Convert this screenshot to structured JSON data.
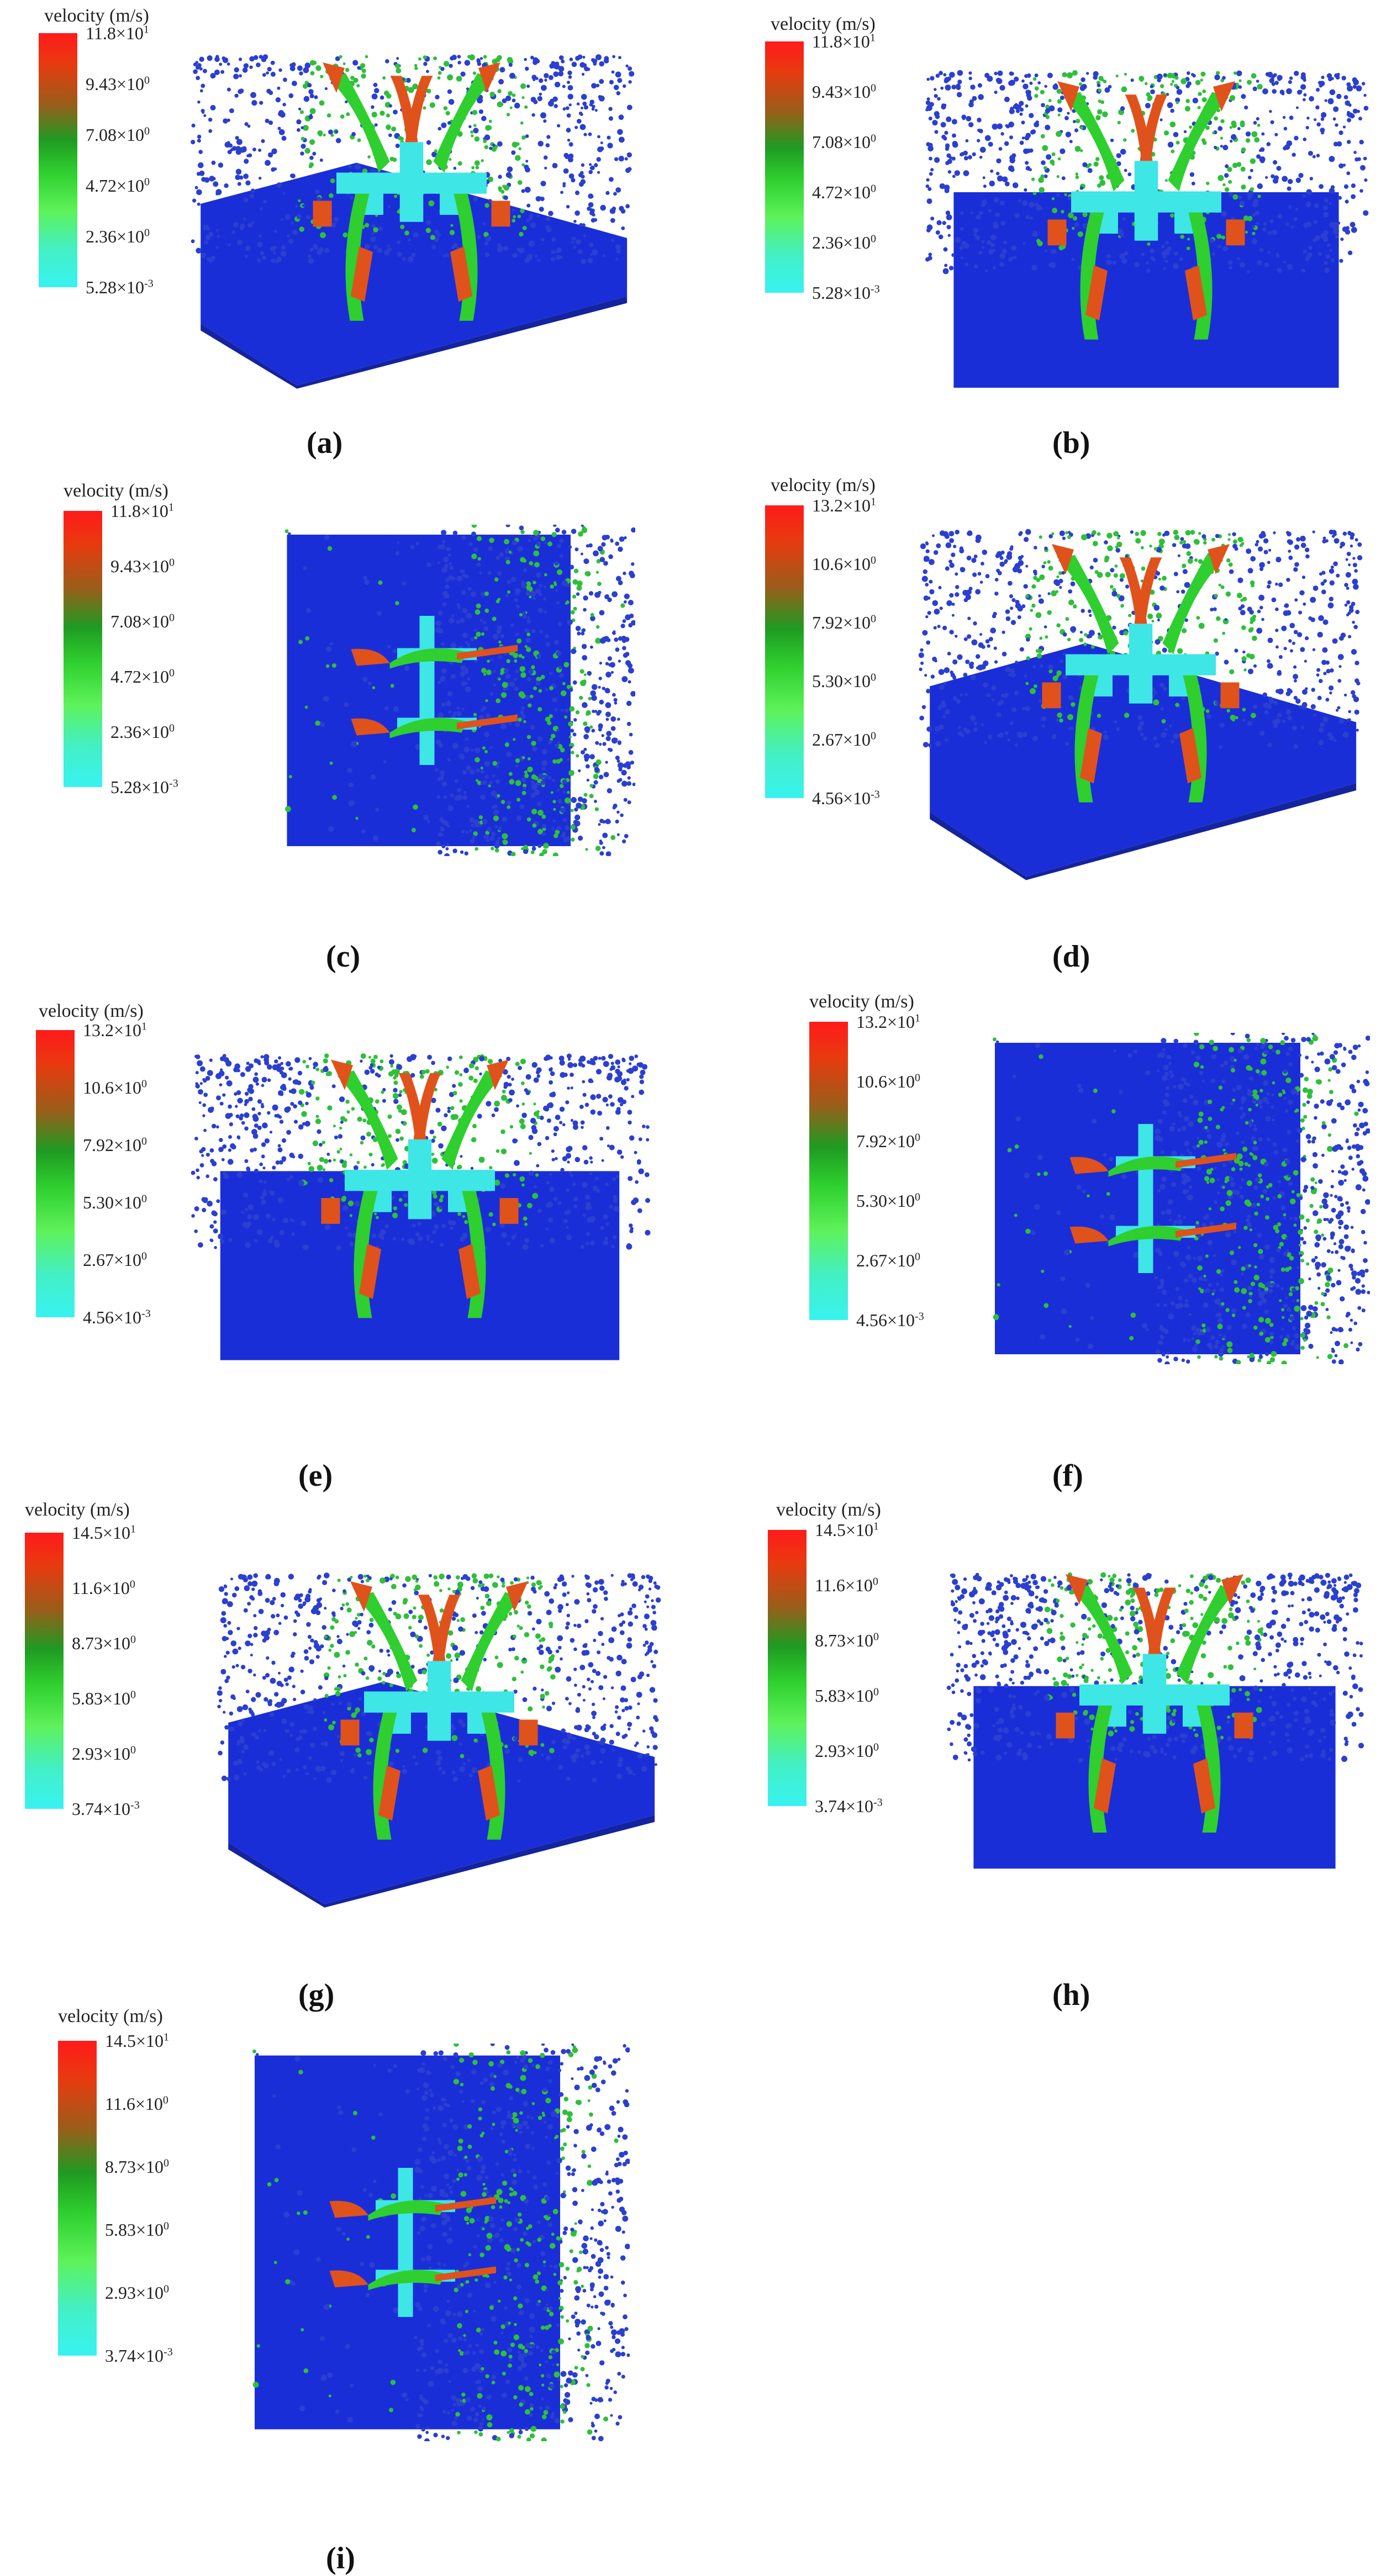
{
  "panels": [
    {
      "label": "(a)",
      "legend_title": "velocity (m/s)",
      "ticks": [
        {
          "m": "11.8",
          "e": "1"
        },
        {
          "m": "9.43",
          "e": "0"
        },
        {
          "m": "7.08",
          "e": "0"
        },
        {
          "m": "4.72",
          "e": "0"
        },
        {
          "m": "2.36",
          "e": "0"
        },
        {
          "m": "5.28",
          "e": "-3"
        }
      ],
      "view": "isometric"
    },
    {
      "label": "(b)",
      "legend_title": "velocity (m/s)",
      "ticks": [
        {
          "m": "11.8",
          "e": "1"
        },
        {
          "m": "9.43",
          "e": "0"
        },
        {
          "m": "7.08",
          "e": "0"
        },
        {
          "m": "4.72",
          "e": "0"
        },
        {
          "m": "2.36",
          "e": "0"
        },
        {
          "m": "5.28",
          "e": "-3"
        }
      ],
      "view": "front"
    },
    {
      "label": "(c)",
      "legend_title": "velocity (m/s)",
      "ticks": [
        {
          "m": "11.8",
          "e": "1"
        },
        {
          "m": "9.43",
          "e": "0"
        },
        {
          "m": "7.08",
          "e": "0"
        },
        {
          "m": "4.72",
          "e": "0"
        },
        {
          "m": "2.36",
          "e": "0"
        },
        {
          "m": "5.28",
          "e": "-3"
        }
      ],
      "view": "top"
    },
    {
      "label": "(d)",
      "legend_title": "velocity (m/s)",
      "ticks": [
        {
          "m": "13.2",
          "e": "1"
        },
        {
          "m": "10.6",
          "e": "0"
        },
        {
          "m": "7.92",
          "e": "0"
        },
        {
          "m": "5.30",
          "e": "0"
        },
        {
          "m": "2.67",
          "e": "0"
        },
        {
          "m": "4.56",
          "e": "-3"
        }
      ],
      "view": "isometric"
    },
    {
      "label": "(e)",
      "legend_title": "velocity (m/s)",
      "ticks": [
        {
          "m": "13.2",
          "e": "1"
        },
        {
          "m": "10.6",
          "e": "0"
        },
        {
          "m": "7.92",
          "e": "0"
        },
        {
          "m": "5.30",
          "e": "0"
        },
        {
          "m": "2.67",
          "e": "0"
        },
        {
          "m": "4.56",
          "e": "-3"
        }
      ],
      "view": "front"
    },
    {
      "label": "(f)",
      "legend_title": "velocity (m/s)",
      "ticks": [
        {
          "m": "13.2",
          "e": "1"
        },
        {
          "m": "10.6",
          "e": "0"
        },
        {
          "m": "7.92",
          "e": "0"
        },
        {
          "m": "5.30",
          "e": "0"
        },
        {
          "m": "2.67",
          "e": "0"
        },
        {
          "m": "4.56",
          "e": "-3"
        }
      ],
      "view": "top"
    },
    {
      "label": "(g)",
      "legend_title": "velocity (m/s)",
      "ticks": [
        {
          "m": "14.5",
          "e": "1"
        },
        {
          "m": "11.6",
          "e": "0"
        },
        {
          "m": "8.73",
          "e": "0"
        },
        {
          "m": "5.83",
          "e": "0"
        },
        {
          "m": "2.93",
          "e": "0"
        },
        {
          "m": "3.74",
          "e": "-3"
        }
      ],
      "view": "isometric"
    },
    {
      "label": "(h)",
      "legend_title": "velocity (m/s)",
      "ticks": [
        {
          "m": "14.5",
          "e": "1"
        },
        {
          "m": "11.6",
          "e": "0"
        },
        {
          "m": "8.73",
          "e": "0"
        },
        {
          "m": "5.83",
          "e": "0"
        },
        {
          "m": "2.93",
          "e": "0"
        },
        {
          "m": "3.74",
          "e": "-3"
        }
      ],
      "view": "front"
    },
    {
      "label": "(i)",
      "legend_title": "velocity (m/s)",
      "ticks": [
        {
          "m": "14.5",
          "e": "1"
        },
        {
          "m": "11.6",
          "e": "0"
        },
        {
          "m": "8.73",
          "e": "0"
        },
        {
          "m": "5.83",
          "e": "0"
        },
        {
          "m": "2.93",
          "e": "0"
        },
        {
          "m": "3.74",
          "e": "-3"
        }
      ],
      "view": "top"
    }
  ],
  "colors": {
    "soil": "#1a2ed8",
    "soil_dark": "#14239e",
    "particle_blue": "#2b3fd0",
    "particle_green": "#2fbf3a",
    "blade_orange": "#e0521c",
    "blade_green": "#2ecf2e",
    "shaft_cyan": "#3ee6e6"
  }
}
